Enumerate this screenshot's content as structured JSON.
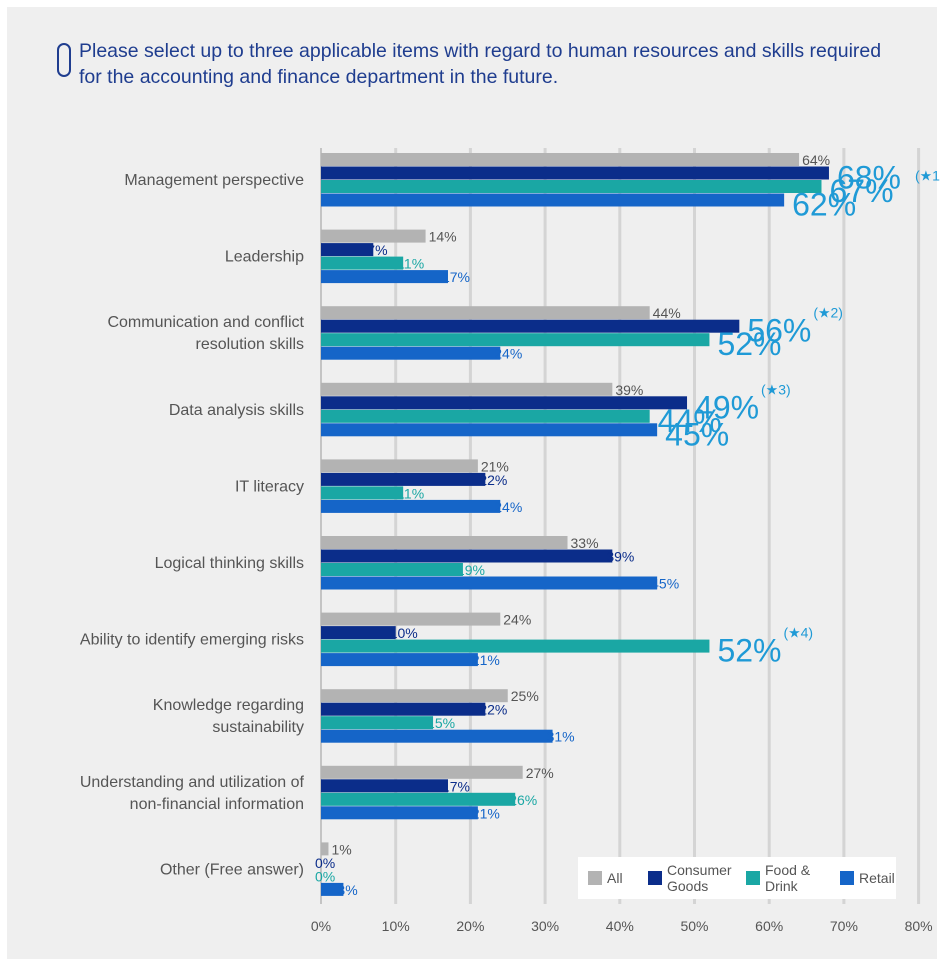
{
  "question": "Please select up to three applicable items with regard to human resources and skills required for the accounting and finance department in the future.",
  "chart_data": {
    "type": "bar",
    "orientation": "horizontal",
    "categories": [
      [
        "Management perspective"
      ],
      [
        "Leadership"
      ],
      [
        "Communication and conflict",
        "resolution skills"
      ],
      [
        "Data analysis skills"
      ],
      [
        "IT literacy"
      ],
      [
        "Logical thinking skills"
      ],
      [
        "Ability to identify emerging risks"
      ],
      [
        "Knowledge regarding",
        "sustainability"
      ],
      [
        "Understanding and utilization of",
        "non-financial information"
      ],
      [
        "Other (Free answer)"
      ]
    ],
    "series": [
      {
        "name": "All",
        "color": "#b3b3b3",
        "label_color": "#555555",
        "values": [
          64,
          14,
          44,
          39,
          21,
          33,
          24,
          25,
          27,
          1
        ]
      },
      {
        "name": "Consumer Goods",
        "color": "#0b2d8a",
        "label_color": "#0b2d8a",
        "values": [
          68,
          7,
          56,
          49,
          22,
          39,
          10,
          22,
          17,
          0
        ]
      },
      {
        "name": "Food & Drink",
        "color": "#1aa7a4",
        "label_color": "#1aa7a4",
        "values": [
          67,
          11,
          52,
          44,
          11,
          19,
          52,
          15,
          26,
          0
        ]
      },
      {
        "name": "Retail",
        "color": "#1565c8",
        "label_color": "#1565c8",
        "values": [
          62,
          17,
          24,
          45,
          24,
          45,
          21,
          31,
          21,
          3
        ]
      }
    ],
    "xlim": [
      0,
      80
    ],
    "xticks": [
      0,
      10,
      20,
      30,
      40,
      50,
      60,
      70,
      80
    ],
    "tick_suffix": "%",
    "grid": true,
    "legend_position": "bottom-right",
    "highlights": [
      {
        "category": 0,
        "series": 1,
        "note": "(★1"
      },
      {
        "category": 0,
        "series": 2,
        "note": ""
      },
      {
        "category": 0,
        "series": 3,
        "note": ""
      },
      {
        "category": 2,
        "series": 1,
        "note": "(★2)"
      },
      {
        "category": 2,
        "series": 2,
        "note": ""
      },
      {
        "category": 3,
        "series": 1,
        "note": "(★3)"
      },
      {
        "category": 3,
        "series": 2,
        "note": ""
      },
      {
        "category": 3,
        "series": 3,
        "note": ""
      },
      {
        "category": 6,
        "series": 2,
        "note": "(★4)"
      }
    ]
  },
  "legend": [
    {
      "lines": [
        "All"
      ],
      "color": "#b3b3b3"
    },
    {
      "lines": [
        "Consumer",
        "Goods"
      ],
      "color": "#0b2d8a"
    },
    {
      "lines": [
        "Food &",
        "Drink"
      ],
      "color": "#1aa7a4"
    },
    {
      "lines": [
        "Retail"
      ],
      "color": "#1565c8"
    }
  ]
}
